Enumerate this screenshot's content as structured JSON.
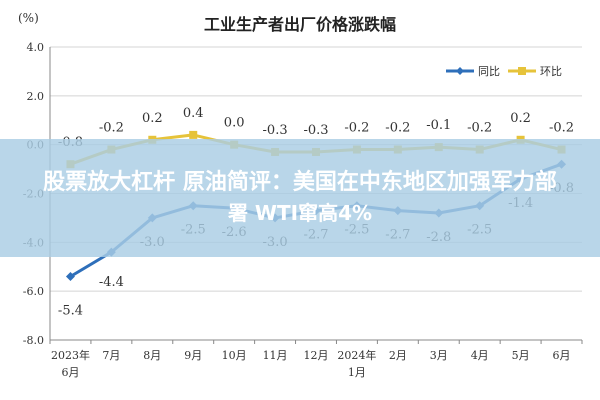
{
  "chart_data": {
    "type": "line",
    "title": "工业生产者出厂价格涨跌幅",
    "unit_label": "(%)",
    "ylim": [
      -8.0,
      4.0
    ],
    "yticks": [
      "4.0",
      "2.0",
      "0.0",
      "-2.0",
      "-4.0",
      "-6.0",
      "-8.0"
    ],
    "categories": [
      [
        "2023年",
        "6月"
      ],
      [
        "7月"
      ],
      [
        "8月"
      ],
      [
        "9月"
      ],
      [
        "10月"
      ],
      [
        "11月"
      ],
      [
        "12月"
      ],
      [
        "2024年",
        "1月"
      ],
      [
        "2月"
      ],
      [
        "3月"
      ],
      [
        "4月"
      ],
      [
        "5月"
      ],
      [
        "6月"
      ]
    ],
    "grid": true,
    "legend_position": "top-right",
    "series": [
      {
        "name": "同比",
        "color": "#2e6fba",
        "values": [
          -5.4,
          -4.4,
          -3.0,
          -2.5,
          -2.6,
          -3.0,
          -2.7,
          -2.5,
          -2.7,
          -2.8,
          -2.5,
          -1.4,
          -0.8
        ],
        "labels": [
          "-5.4",
          "-4.4",
          "-3.0",
          "-2.5",
          "-2.6",
          "-3.0",
          "-2.7",
          "-2.5",
          "-2.7",
          "-2.8",
          "-2.5",
          "-1.4",
          "-0.8"
        ]
      },
      {
        "name": "环比",
        "color": "#e6c33a",
        "values": [
          -0.8,
          -0.2,
          0.2,
          0.4,
          0.0,
          -0.3,
          -0.3,
          -0.2,
          -0.2,
          -0.1,
          -0.2,
          0.2,
          -0.2
        ],
        "labels": [
          "-0.8",
          "-0.2",
          "0.2",
          "0.4",
          "0.0",
          "-0.3",
          "-0.3",
          "-0.2",
          "-0.2",
          "-0.1",
          "-0.2",
          "0.2",
          "-0.2"
        ]
      }
    ]
  },
  "overlay": {
    "line1": "股票放大杠杆 原油简评：美国在中东地区加强军力部",
    "line2": "署 WTI窜高4%"
  }
}
